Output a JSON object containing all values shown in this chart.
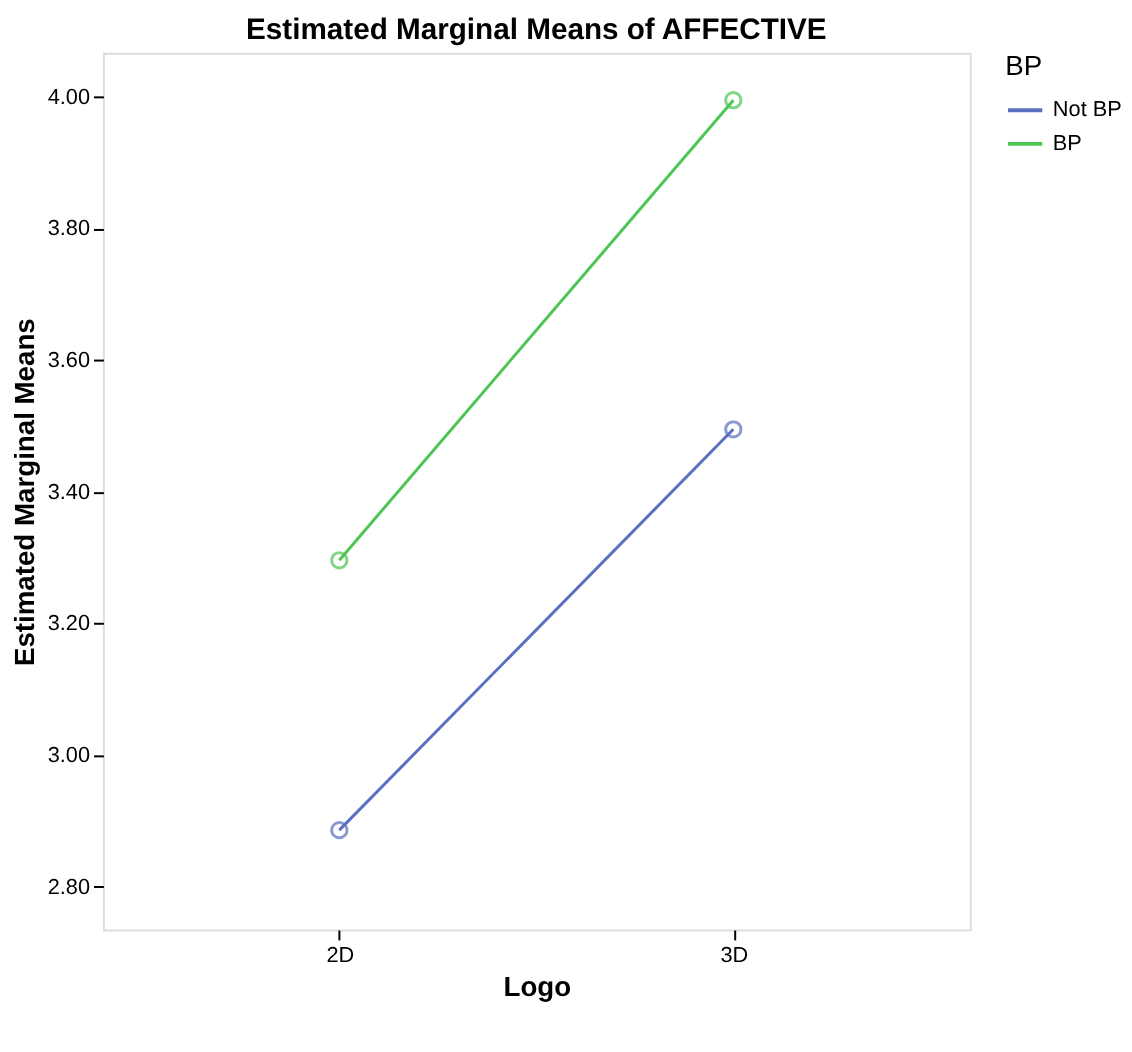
{
  "chart_data": {
    "type": "line",
    "title": "Estimated Marginal Means of AFFECTIVE",
    "xlabel": "Logo",
    "ylabel": "Estimated Marginal Means",
    "legend_title": "BP",
    "categories": [
      "2D",
      "3D"
    ],
    "series": [
      {
        "name": "Not BP",
        "color": "#5a6fc0",
        "values": [
          2.886,
          3.495
        ]
      },
      {
        "name": "BP",
        "color": "#4cc552",
        "values": [
          3.296,
          3.995
        ]
      }
    ],
    "ylim": [
      2.735,
      4.067
    ],
    "yticks": [
      {
        "value": 2.8,
        "label": "2.80"
      },
      {
        "value": 3.0,
        "label": "3.00"
      },
      {
        "value": 3.2,
        "label": "3.20"
      },
      {
        "value": 3.4,
        "label": "3.40"
      },
      {
        "value": 3.6,
        "label": "3.60"
      },
      {
        "value": 3.8,
        "label": "3.80"
      },
      {
        "value": 4.0,
        "label": "4.00"
      }
    ],
    "grid": false,
    "legend": "top right",
    "marker": "circle",
    "line_style": "solid"
  }
}
